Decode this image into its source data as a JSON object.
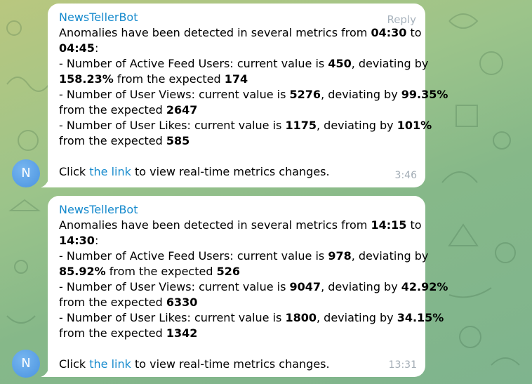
{
  "chat": {
    "messages": [
      {
        "sender": "NewsTellerBot",
        "reply_label": "Reply",
        "avatar_initial": "N",
        "time": "3:46",
        "intro": {
          "pre": "Anomalies have been detected in several metrics from ",
          "from": "04:30",
          "mid": " to ",
          "to": "04:45",
          "post": ":"
        },
        "metrics": [
          {
            "pre": "- Number of Active Feed Users: current value is ",
            "value": "450",
            "mid": ", deviating by ",
            "deviation": "158.23%",
            "post": " from the expected ",
            "expected": "174"
          },
          {
            "pre": "- Number of User Views: current value is ",
            "value": "5276",
            "mid": ", deviating by ",
            "deviation": "99.35%",
            "post": " from the expected ",
            "expected": "2647"
          },
          {
            "pre": "- Number of User Likes: current value is ",
            "value": "1175",
            "mid": ", deviating by ",
            "deviation": "101%",
            "post": " from the expected ",
            "expected": "585"
          }
        ],
        "footer": {
          "pre": "Click ",
          "link": "the link",
          "post": " to view real-time metrics changes."
        }
      },
      {
        "sender": "NewsTellerBot",
        "avatar_initial": "N",
        "time": "13:31",
        "intro": {
          "pre": "Anomalies have been detected in several metrics from ",
          "from": "14:15",
          "mid": " to ",
          "to": "14:30",
          "post": ":"
        },
        "metrics": [
          {
            "pre": "- Number of Active Feed Users: current value is ",
            "value": "978",
            "mid": ", deviating by ",
            "deviation": "85.92%",
            "post": " from the expected ",
            "expected": "526"
          },
          {
            "pre": "- Number of User Views: current value is ",
            "value": "9047",
            "mid": ", deviating by ",
            "deviation": "42.92%",
            "post": " from the expected ",
            "expected": "6330"
          },
          {
            "pre": "- Number of User Likes: current value is ",
            "value": "1800",
            "mid": ", deviating by ",
            "deviation": "34.15%",
            "post": " from the expected ",
            "expected": "1342"
          }
        ],
        "footer": {
          "pre": "Click ",
          "link": "the link",
          "post": " to view real-time metrics changes."
        }
      }
    ]
  },
  "colors": {
    "link": "#168acd",
    "bubble": "#ffffff",
    "avatar": "#4a93e0",
    "meta": "#a2acb5"
  }
}
